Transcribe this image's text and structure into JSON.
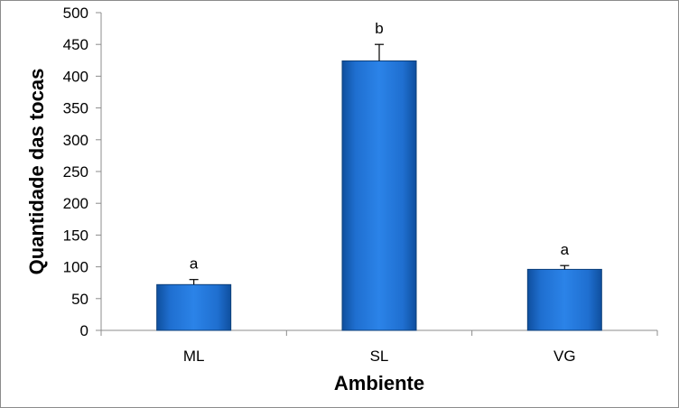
{
  "chart_data": {
    "type": "bar",
    "categories": [
      "ML",
      "SL",
      "VG"
    ],
    "values": [
      72,
      424,
      96
    ],
    "error_bars": [
      8,
      26,
      6
    ],
    "significance_labels": [
      "a",
      "b",
      "a"
    ],
    "xlabel": "Ambiente",
    "ylabel": "Quantidade das tocas",
    "ylim": [
      0,
      500
    ],
    "yticks": [
      0,
      50,
      100,
      150,
      200,
      250,
      300,
      350,
      400,
      450,
      500
    ],
    "grid": false,
    "legend": "none",
    "bar_color": "#1f6fd0",
    "bar_edge_color": "#0d3f7a"
  }
}
